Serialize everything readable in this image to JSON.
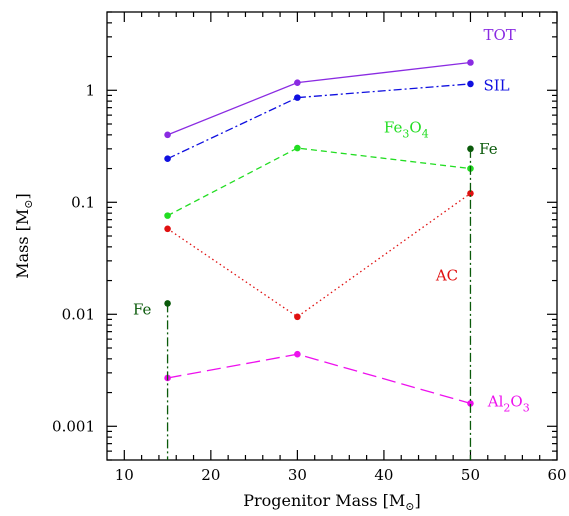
{
  "chart_data": {
    "type": "line",
    "xlabel": "Progenitor Mass [M",
    "xlabel_suffix": "]",
    "ylabel": "Mass [M",
    "ylabel_suffix": "]",
    "sun_symbol": "⊙",
    "xlim": [
      8,
      60
    ],
    "ylim": [
      0.0005,
      5
    ],
    "yscale": "log",
    "xticks": [
      10,
      20,
      30,
      40,
      50,
      60
    ],
    "xtick_labels": [
      "10",
      "20",
      "30",
      "40",
      "50",
      "60"
    ],
    "yticks": [
      0.001,
      0.01,
      0.1,
      1
    ],
    "ytick_labels": [
      "0.001",
      "0.01",
      "0.1",
      "1"
    ],
    "grid": false,
    "series": [
      {
        "name": "TOT",
        "color": "#8a2be2",
        "dash": "solid",
        "x": [
          15,
          30,
          50
        ],
        "y": [
          0.4,
          1.17,
          1.77
        ]
      },
      {
        "name": "SIL",
        "color": "#1010e0",
        "dash": "dashdot",
        "x": [
          15,
          30,
          50
        ],
        "y": [
          0.245,
          0.86,
          1.14
        ]
      },
      {
        "name": "Fe3O4",
        "color": "#22dd22",
        "dash": "dashed",
        "x": [
          15,
          30,
          50
        ],
        "y": [
          0.076,
          0.305,
          0.2
        ]
      },
      {
        "name": "AC",
        "color": "#e01010",
        "dash": "dotted",
        "x": [
          15,
          30,
          50
        ],
        "y": [
          0.058,
          0.0095,
          0.12
        ]
      },
      {
        "name": "Al2O3",
        "color": "#ee10ee",
        "dash": "longdash",
        "x": [
          15,
          30,
          50
        ],
        "y": [
          0.0027,
          0.0044,
          0.0016
        ]
      },
      {
        "name": "Fe",
        "color": "#0a5a0a",
        "dash": "dashdotvertical",
        "x": [
          15,
          50
        ],
        "y": [
          0.0125,
          0.3
        ]
      }
    ],
    "annotations": [
      {
        "key": "tot",
        "text": "TOT",
        "color": "#8a2be2",
        "x": 51.5,
        "y": 2.8
      },
      {
        "key": "sil",
        "text": "SIL",
        "color": "#1010e0",
        "x": 51.5,
        "y": 1.0
      },
      {
        "key": "fe3o4",
        "parts": [
          "Fe",
          "3",
          "O",
          "4"
        ],
        "color": "#22dd22",
        "x": 40,
        "y": 0.42
      },
      {
        "key": "fe_right",
        "text": "Fe",
        "color": "#0a5a0a",
        "x": 51,
        "y": 0.27
      },
      {
        "key": "ac",
        "text": "AC",
        "color": "#e01010",
        "x": 46,
        "y": 0.02
      },
      {
        "key": "fe_left",
        "text": "Fe",
        "color": "#0a5a0a",
        "x": 11,
        "y": 0.01
      },
      {
        "key": "al2o3",
        "parts": [
          "Al",
          "2",
          "O",
          "3"
        ],
        "color": "#ee10ee",
        "x": 52,
        "y": 0.0015
      }
    ]
  }
}
